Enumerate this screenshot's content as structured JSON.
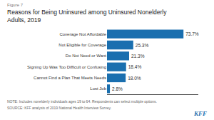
{
  "chart_data": {
    "type": "bar",
    "orientation": "horizontal",
    "title": "Reasons for Being Uninsured among Uninsured Nonelderly\nAdults, 2019",
    "annotations": [
      "Figure 7",
      "NOTE: Includes nonelderly individuals ages 19 to 64. Respondents can select multiple options.",
      "SOURCE: KFF analysis of 2019 National Health Interview Survey.",
      "KFF"
    ],
    "categories": [
      "Coverage Not Affordable",
      "Not Eligible for Coverage",
      "Do Not Need or Want",
      "Signing Up Was Too Difficult or Confusing",
      "Cannot Find a Plan That Meets Needs",
      "Lost Job"
    ],
    "values": [
      73.7,
      25.3,
      21.3,
      18.4,
      18.0,
      2.8
    ],
    "value_labels": [
      "73.7%",
      "25.3%",
      "21.3%",
      "18.4%",
      "18.0%",
      "2.8%"
    ],
    "data_labels": true,
    "color": "#1a6faf",
    "xlim": [
      0,
      88
    ],
    "grid": false,
    "tick_labels": "y"
  }
}
